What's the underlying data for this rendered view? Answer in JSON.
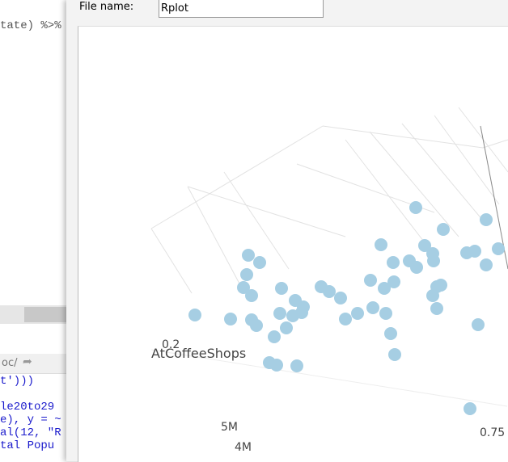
{
  "editor": {
    "code_top": "tate) %>%",
    "console_path": "oc/",
    "console_lines": [
      "t')))",
      "",
      "le20to29",
      "e), y = ~",
      "al(12, \"R",
      "tal Popu"
    ]
  },
  "dialog": {
    "file_name_label": "File name:",
    "file_name_value": "Rplot"
  },
  "plot": {
    "axis_tick_z": "0.2",
    "axis_title_z": "AtCoffeeShops",
    "axis_tick_y": [
      "5M",
      "4M"
    ],
    "axis_tick_x": "0.75"
  }
}
